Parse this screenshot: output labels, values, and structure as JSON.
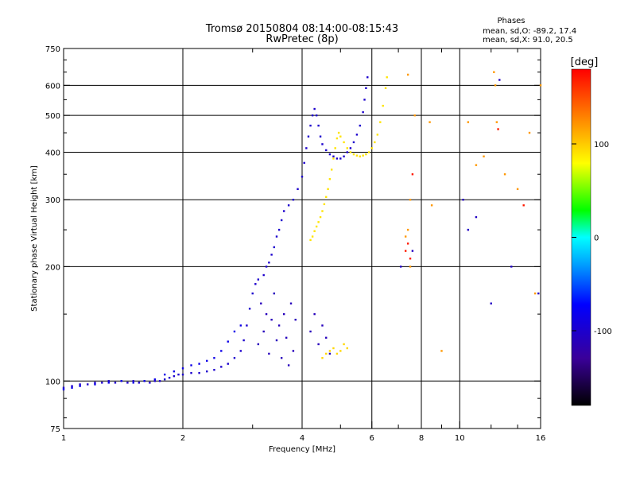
{
  "chart_data": {
    "type": "scatter",
    "title": "Tromsø 20150804 08:14:00-08:15:43",
    "subtitle": "RwPretec (8p)",
    "phases": {
      "heading": "Phases",
      "line_o": "mean, sd,O: -89.2, 17.4",
      "line_x": "mean, sd,X:  91.0, 20.5"
    },
    "xlabel": "Frequency [MHz]",
    "ylabel": "Stationary phase Virtual Height [km]",
    "x_scale": "log",
    "y_scale": "log",
    "xlim": [
      1,
      16
    ],
    "ylim": [
      75,
      750
    ],
    "x_ticks": [
      {
        "v": 1,
        "label": "1"
      },
      {
        "v": 2,
        "label": "2"
      },
      {
        "v": 4,
        "label": "4"
      },
      {
        "v": 6,
        "label": "6"
      },
      {
        "v": 8,
        "label": "8"
      },
      {
        "v": 10,
        "label": "10"
      },
      {
        "v": 16,
        "label": "16"
      }
    ],
    "x_minor_ticks": [
      3,
      5,
      7,
      9,
      12,
      14
    ],
    "x_grid": [
      2,
      4,
      6,
      8,
      10
    ],
    "y_ticks": [
      {
        "v": 75,
        "label": "75"
      },
      {
        "v": 100,
        "label": "100"
      },
      {
        "v": 200,
        "label": "200"
      },
      {
        "v": 300,
        "label": "300"
      },
      {
        "v": 400,
        "label": "400"
      },
      {
        "v": 500,
        "label": "500"
      },
      {
        "v": 600,
        "label": "600"
      },
      {
        "v": 750,
        "label": "750"
      }
    ],
    "y_grid": [
      100,
      200,
      300,
      400,
      500,
      600
    ],
    "grid": true,
    "colorbar": {
      "label": "[deg]",
      "min": -180,
      "max": 180,
      "ticks": [
        {
          "v": 100,
          "label": "100"
        },
        {
          "v": 0,
          "label": "0"
        },
        {
          "v": -100,
          "label": "-100"
        }
      ],
      "colormap": "rainbow"
    },
    "series": [
      {
        "mode": "O-trace",
        "phase": -100,
        "points": [
          [
            1.0,
            96
          ],
          [
            1.05,
            97
          ],
          [
            1.1,
            98
          ],
          [
            1.15,
            98
          ],
          [
            1.2,
            99
          ],
          [
            1.25,
            99
          ],
          [
            1.3,
            100
          ],
          [
            1.35,
            99
          ],
          [
            1.4,
            100
          ],
          [
            1.45,
            99
          ],
          [
            1.5,
            100
          ],
          [
            1.55,
            99
          ],
          [
            1.6,
            100
          ],
          [
            1.65,
            99
          ],
          [
            1.7,
            100
          ],
          [
            1.75,
            100
          ],
          [
            1.8,
            101
          ],
          [
            1.85,
            102
          ],
          [
            1.9,
            103
          ],
          [
            1.95,
            104
          ],
          [
            2.0,
            104
          ],
          [
            2.1,
            105
          ],
          [
            2.2,
            105
          ],
          [
            2.3,
            106
          ],
          [
            2.4,
            107
          ],
          [
            2.5,
            109
          ],
          [
            2.6,
            111
          ],
          [
            2.7,
            115
          ],
          [
            2.8,
            120
          ],
          [
            2.85,
            128
          ],
          [
            2.9,
            140
          ],
          [
            2.95,
            155
          ],
          [
            3.0,
            170
          ],
          [
            3.05,
            180
          ],
          [
            3.1,
            185
          ],
          [
            3.2,
            190
          ],
          [
            3.25,
            200
          ],
          [
            3.3,
            205
          ],
          [
            3.35,
            215
          ],
          [
            3.4,
            225
          ],
          [
            3.45,
            240
          ],
          [
            3.5,
            250
          ],
          [
            3.55,
            265
          ],
          [
            3.6,
            280
          ],
          [
            3.7,
            290
          ],
          [
            3.8,
            300
          ],
          [
            3.9,
            320
          ],
          [
            4.0,
            345
          ],
          [
            4.05,
            375
          ],
          [
            4.1,
            410
          ],
          [
            4.15,
            440
          ],
          [
            4.2,
            470
          ],
          [
            4.25,
            500
          ],
          [
            4.3,
            520
          ],
          [
            4.35,
            500
          ],
          [
            4.4,
            470
          ],
          [
            4.45,
            440
          ],
          [
            4.5,
            420
          ],
          [
            4.6,
            405
          ],
          [
            4.7,
            395
          ],
          [
            4.8,
            390
          ],
          [
            4.9,
            385
          ],
          [
            5.0,
            385
          ],
          [
            5.1,
            390
          ],
          [
            5.2,
            400
          ],
          [
            5.3,
            410
          ],
          [
            5.4,
            425
          ],
          [
            5.5,
            445
          ],
          [
            5.6,
            470
          ],
          [
            5.7,
            510
          ],
          [
            5.75,
            550
          ],
          [
            5.8,
            590
          ],
          [
            5.85,
            630
          ]
        ]
      },
      {
        "mode": "O-scatter-lower",
        "phase": -110,
        "points": [
          [
            3.1,
            125
          ],
          [
            3.15,
            160
          ],
          [
            3.2,
            135
          ],
          [
            3.25,
            150
          ],
          [
            3.3,
            118
          ],
          [
            3.35,
            145
          ],
          [
            3.4,
            170
          ],
          [
            3.45,
            128
          ],
          [
            3.5,
            140
          ],
          [
            3.55,
            115
          ],
          [
            3.6,
            150
          ],
          [
            3.65,
            130
          ],
          [
            3.7,
            110
          ],
          [
            3.75,
            160
          ],
          [
            3.8,
            120
          ],
          [
            3.85,
            145
          ],
          [
            4.2,
            135
          ],
          [
            4.3,
            150
          ],
          [
            4.4,
            125
          ],
          [
            4.5,
            140
          ],
          [
            4.6,
            130
          ],
          [
            4.7,
            118
          ]
        ]
      },
      {
        "mode": "X-trace",
        "phase": 90,
        "points": [
          [
            4.2,
            235
          ],
          [
            4.25,
            240
          ],
          [
            4.3,
            248
          ],
          [
            4.35,
            255
          ],
          [
            4.4,
            262
          ],
          [
            4.45,
            270
          ],
          [
            4.5,
            280
          ],
          [
            4.55,
            292
          ],
          [
            4.6,
            305
          ],
          [
            4.65,
            320
          ],
          [
            4.7,
            340
          ],
          [
            4.75,
            360
          ],
          [
            4.8,
            385
          ],
          [
            4.85,
            410
          ],
          [
            4.9,
            435
          ],
          [
            4.95,
            450
          ],
          [
            5.0,
            440
          ],
          [
            5.1,
            425
          ],
          [
            5.2,
            410
          ],
          [
            5.3,
            400
          ],
          [
            5.4,
            395
          ],
          [
            5.5,
            392
          ],
          [
            5.6,
            390
          ],
          [
            5.7,
            392
          ],
          [
            5.8,
            395
          ],
          [
            5.9,
            400
          ],
          [
            6.0,
            410
          ],
          [
            6.1,
            425
          ],
          [
            6.2,
            445
          ],
          [
            6.3,
            480
          ],
          [
            6.4,
            530
          ],
          [
            6.5,
            590
          ],
          [
            6.55,
            630
          ]
        ]
      },
      {
        "mode": "X-scatter-lower",
        "phase": 95,
        "points": [
          [
            4.5,
            115
          ],
          [
            4.6,
            118
          ],
          [
            4.7,
            120
          ],
          [
            4.8,
            122
          ],
          [
            4.9,
            118
          ],
          [
            5.0,
            120
          ],
          [
            5.1,
            125
          ],
          [
            5.2,
            122
          ]
        ]
      },
      {
        "mode": "E-trace",
        "phase": -85,
        "points": [
          [
            1.0,
            95
          ],
          [
            1.05,
            96
          ],
          [
            1.1,
            97
          ],
          [
            1.2,
            98
          ],
          [
            1.3,
            99
          ],
          [
            1.4,
            100
          ],
          [
            1.5,
            99
          ],
          [
            1.6,
            100
          ],
          [
            1.7,
            101
          ],
          [
            1.8,
            104
          ],
          [
            1.9,
            106
          ],
          [
            2.0,
            108
          ],
          [
            2.1,
            110
          ],
          [
            2.2,
            111
          ],
          [
            2.3,
            113
          ],
          [
            2.4,
            115
          ],
          [
            2.5,
            120
          ],
          [
            2.6,
            127
          ],
          [
            2.7,
            135
          ],
          [
            2.8,
            140
          ]
        ]
      },
      {
        "mode": "noise",
        "phase": 120,
        "points": [
          [
            7.4,
            640
          ],
          [
            7.5,
            300
          ],
          [
            7.4,
            250
          ],
          [
            7.3,
            240
          ],
          [
            7.5,
            200
          ],
          [
            7.7,
            500
          ],
          [
            8.4,
            480
          ],
          [
            8.5,
            290
          ],
          [
            9.0,
            120
          ],
          [
            10.5,
            480
          ],
          [
            11.0,
            370
          ],
          [
            11.5,
            390
          ],
          [
            12.2,
            650
          ],
          [
            12.3,
            600
          ],
          [
            12.4,
            480
          ],
          [
            13.0,
            350
          ],
          [
            14.0,
            320
          ],
          [
            15.0,
            450
          ],
          [
            15.5,
            170
          ],
          [
            16.0,
            600
          ]
        ]
      },
      {
        "mode": "noise-red",
        "phase": 170,
        "points": [
          [
            7.3,
            220
          ],
          [
            7.4,
            230
          ],
          [
            7.5,
            210
          ],
          [
            7.6,
            350
          ],
          [
            12.5,
            460
          ],
          [
            14.5,
            290
          ]
        ]
      },
      {
        "mode": "noise-blue",
        "phase": -105,
        "points": [
          [
            7.1,
            200
          ],
          [
            7.6,
            220
          ],
          [
            10.2,
            300
          ],
          [
            10.5,
            250
          ],
          [
            11.0,
            270
          ],
          [
            12.0,
            160
          ],
          [
            12.6,
            620
          ],
          [
            13.5,
            200
          ],
          [
            15.8,
            170
          ]
        ]
      }
    ]
  }
}
